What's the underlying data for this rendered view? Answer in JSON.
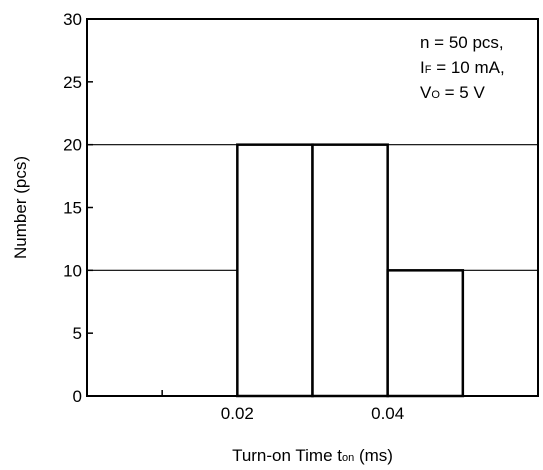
{
  "chart_data": {
    "type": "bar",
    "bins": [
      {
        "x_start": 0.02,
        "x_end": 0.03,
        "count": 20
      },
      {
        "x_start": 0.03,
        "x_end": 0.04,
        "count": 20
      },
      {
        "x_start": 0.04,
        "x_end": 0.05,
        "count": 10
      }
    ],
    "xlim": [
      0.0,
      0.06
    ],
    "ylim": [
      0,
      30
    ],
    "x_ticks": [
      {
        "value": 0.02,
        "label": "0.02"
      },
      {
        "value": 0.04,
        "label": "0.04"
      }
    ],
    "x_minor_ticks": [
      0.01,
      0.03,
      0.05
    ],
    "y_ticks": [
      {
        "value": 0,
        "label": "0"
      },
      {
        "value": 5,
        "label": "5"
      },
      {
        "value": 10,
        "label": "10"
      },
      {
        "value": 15,
        "label": "15"
      },
      {
        "value": 20,
        "label": "20"
      },
      {
        "value": 25,
        "label": "25"
      },
      {
        "value": 30,
        "label": "30"
      }
    ],
    "gridlines_y": [
      10,
      20
    ],
    "xlabel": {
      "main": "Turn-on Time  t",
      "sub": "on",
      "unit": " (ms)"
    },
    "ylabel": "Number  (pcs)",
    "annotation": {
      "line1": "n = 50 pcs,",
      "line2_main": "I",
      "line2_sub": "F",
      "line2_rest": " = 10 mA,",
      "line3_main": "V",
      "line3_sub": "O",
      "line3_rest": " = 5 V"
    }
  }
}
